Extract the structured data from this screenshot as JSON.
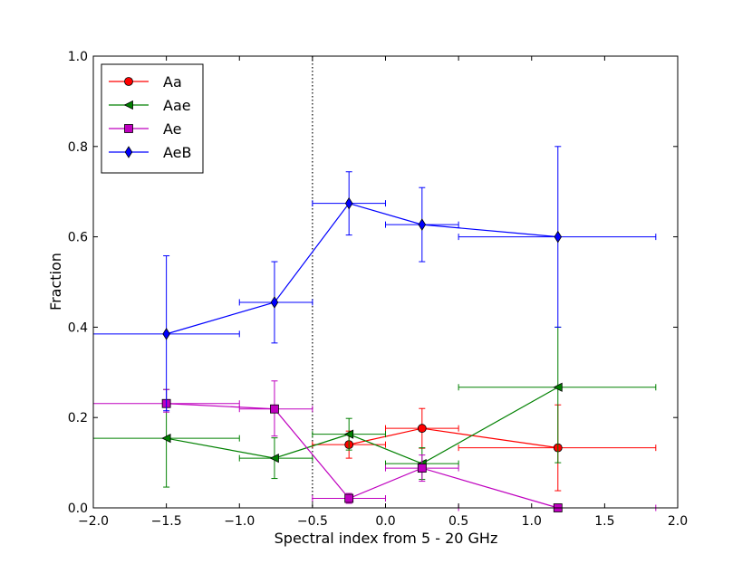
{
  "chart_data": {
    "type": "scatter",
    "xlabel": "Spectral index from 5 - 20 GHz",
    "ylabel": "Fraction",
    "xlim": [
      -2.0,
      2.0
    ],
    "ylim": [
      0.0,
      1.0
    ],
    "xticks": [
      "−2.0",
      "−1.5",
      "−1.0",
      "−0.5",
      "0.0",
      "0.5",
      "1.0",
      "1.5",
      "2.0"
    ],
    "yticks": [
      "0.0",
      "0.2",
      "0.4",
      "0.6",
      "0.8",
      "1.0"
    ],
    "vline_x": -0.5,
    "legend_position": "top-left",
    "bins": [
      {
        "x": -1.5,
        "lo": -2.0,
        "hi": -1.0
      },
      {
        "x": -0.76,
        "lo": -1.0,
        "hi": -0.5
      },
      {
        "x": -0.25,
        "lo": -0.5,
        "hi": 0.0
      },
      {
        "x": 0.25,
        "lo": 0.0,
        "hi": 0.5
      },
      {
        "x": 1.18,
        "lo": 0.5,
        "hi": 1.85
      }
    ],
    "series": [
      {
        "name": "Aa",
        "color": "#ff0000",
        "marker": "circle",
        "y": [
          null,
          null,
          0.14,
          0.176,
          0.133
        ],
        "yerr_lo": [
          null,
          null,
          0.03,
          0.044,
          0.095
        ],
        "yerr_hi": [
          null,
          null,
          0.03,
          0.044,
          0.095
        ]
      },
      {
        "name": "Aae",
        "color": "#008000",
        "marker": "triangle-left",
        "y": [
          0.154,
          0.11,
          0.163,
          0.098,
          0.267
        ],
        "yerr_lo": [
          0.108,
          0.045,
          0.035,
          0.035,
          0.167
        ],
        "yerr_hi": [
          0.108,
          0.045,
          0.035,
          0.035,
          0.133
        ]
      },
      {
        "name": "Ae",
        "color": "#bf00bf",
        "marker": "square",
        "y": [
          0.231,
          0.219,
          0.021,
          0.088,
          0.0
        ],
        "yerr_lo": [
          0.019,
          0.06,
          0.011,
          0.029,
          0.0
        ],
        "yerr_hi": [
          0.031,
          0.062,
          0.011,
          0.029,
          0.0
        ]
      },
      {
        "name": "AeB",
        "color": "#0000ff",
        "marker": "diamond",
        "y": [
          0.385,
          0.455,
          0.674,
          0.627,
          0.6
        ],
        "yerr_lo": [
          0.17,
          0.09,
          0.07,
          0.082,
          0.2
        ],
        "yerr_hi": [
          0.173,
          0.09,
          0.07,
          0.082,
          0.2
        ]
      }
    ]
  }
}
